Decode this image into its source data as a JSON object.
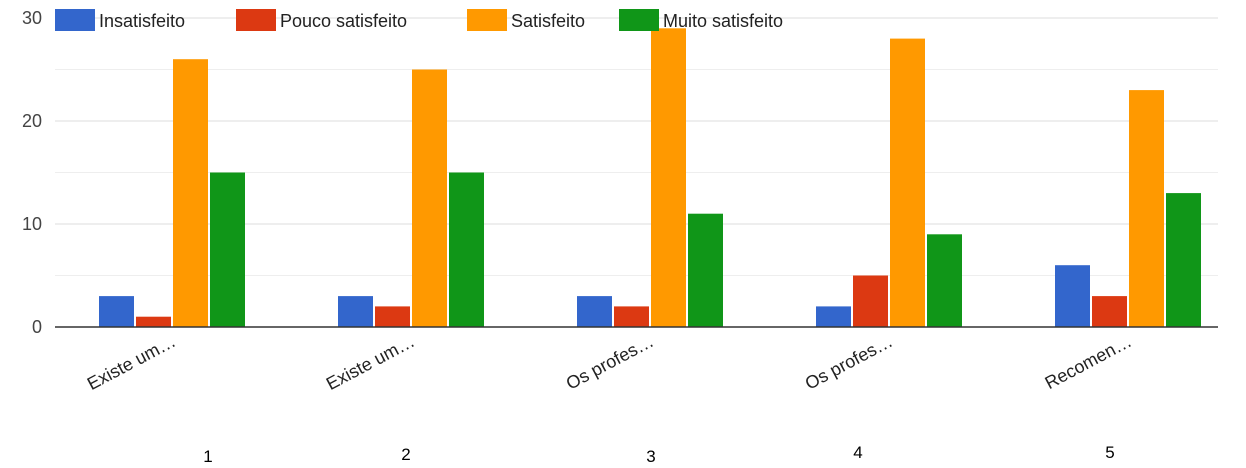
{
  "chart_data": {
    "type": "bar",
    "title": "",
    "xlabel": "",
    "ylabel": "",
    "ylim": [
      0,
      30
    ],
    "yticks": [
      0,
      10,
      20,
      30
    ],
    "grid": true,
    "legend_position": "top-left",
    "categories": [
      "Existe um…",
      "Existe um…",
      "Os profes…",
      "Os profes…",
      "Recomen…"
    ],
    "category_numbers": [
      "1",
      "2",
      "3",
      "4",
      "5"
    ],
    "series": [
      {
        "name": "Insatisfeito",
        "color": "#3366cc",
        "values": [
          3,
          3,
          3,
          2,
          6
        ]
      },
      {
        "name": "Pouco satisfeito",
        "color": "#dc3912",
        "values": [
          1,
          2,
          2,
          5,
          3
        ]
      },
      {
        "name": "Satisfeito",
        "color": "#ff9900",
        "values": [
          26,
          25,
          29,
          28,
          23
        ]
      },
      {
        "name": "Muito satisfeito",
        "color": "#109618",
        "values": [
          15,
          15,
          11,
          9,
          13
        ]
      }
    ]
  }
}
